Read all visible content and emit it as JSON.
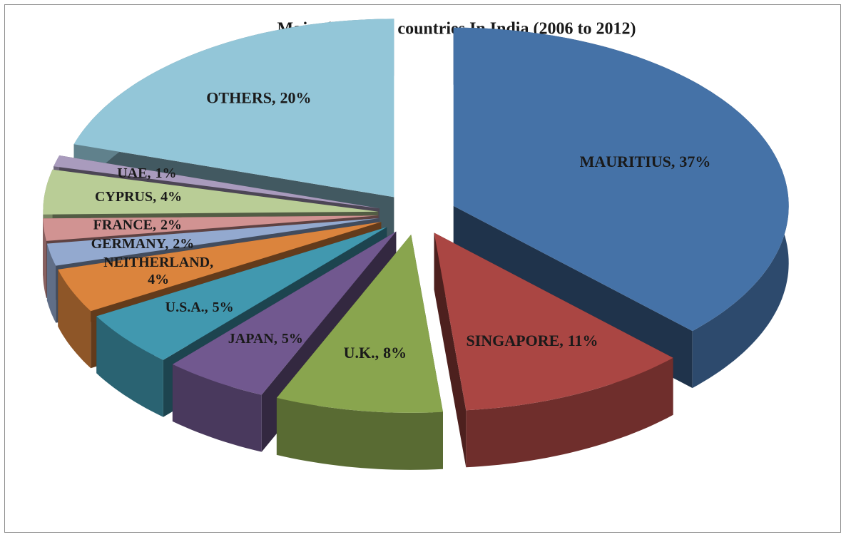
{
  "chart_data": {
    "type": "pie3d",
    "title": "Major investing countries In India (2006 to 2012)",
    "categories": [
      "MAURITIUS,",
      "SINGAPORE,",
      "U.K.,",
      "JAPAN,",
      "U.S.A.,",
      "NEITHERLAND,",
      "GERMANY,",
      "FRANCE,",
      "CYPRUS,",
      "UAE,",
      "OTHERS,"
    ],
    "values": [
      37,
      11,
      8,
      5,
      5,
      4,
      2,
      2,
      4,
      1,
      20
    ],
    "value_labels": [
      "37%",
      "11%",
      "8%",
      "5%",
      "5%",
      "4%",
      "2%",
      "2%",
      "4%",
      "1%",
      "20%"
    ],
    "colors": [
      "#4572a7",
      "#aa4643",
      "#89a54e",
      "#71588f",
      "#4198af",
      "#db843d",
      "#93a9cf",
      "#d19392",
      "#b9cd96",
      "#a99bbd",
      "#93c6d8"
    ]
  }
}
